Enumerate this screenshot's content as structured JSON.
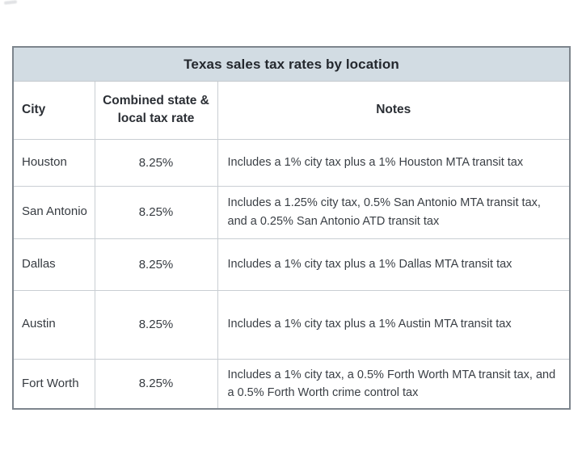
{
  "chart_data": {
    "type": "table",
    "title": "Texas sales tax rates by location",
    "columns": [
      "City",
      "Combined state & local tax rate",
      "Notes"
    ],
    "rows": [
      {
        "city": "Houston",
        "rate": "8.25%",
        "notes": "Includes a 1% city tax plus a 1% Houston MTA transit tax"
      },
      {
        "city": "San Antonio",
        "rate": "8.25%",
        "notes": "Includes a 1.25% city tax, 0.5% San Antonio MTA transit tax, and a 0.25% San Antonio ATD transit tax"
      },
      {
        "city": "Dallas",
        "rate": "8.25%",
        "notes": "Includes a 1% city tax plus a 1% Dallas MTA transit tax"
      },
      {
        "city": "Austin",
        "rate": "8.25%",
        "notes": "Includes a 1% city tax plus a 1% Austin MTA transit tax"
      },
      {
        "city": "Fort Worth",
        "rate": "8.25%",
        "notes": "Includes a 1% city tax, a 0.5% Forth Worth MTA transit tax, and a 0.5% Forth Worth crime control tax"
      }
    ],
    "colors": {
      "title_bg": "#d2dce3",
      "border_outer": "#7d858d",
      "border_inner": "#c9ced3",
      "text": "#363b41"
    }
  }
}
